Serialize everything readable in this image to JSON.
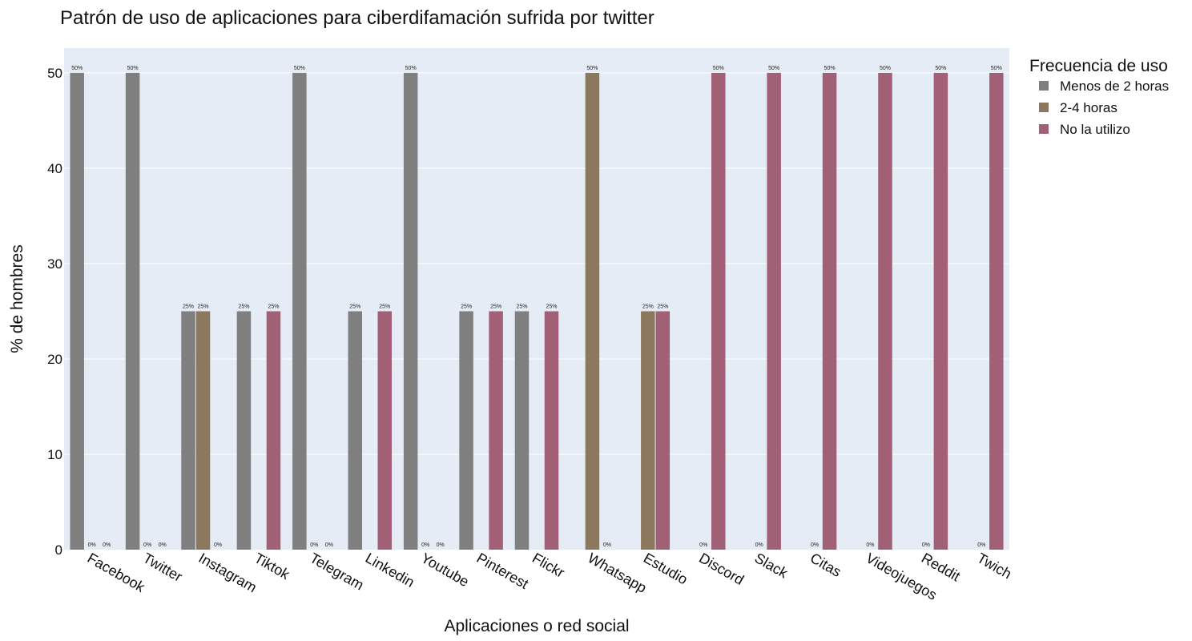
{
  "chart_data": {
    "type": "bar",
    "title": "Patrón de uso de aplicaciones para ciberdifamación sufrida por twitter",
    "xlabel": "Aplicaciones o red social",
    "ylabel": "% de hombres",
    "ylim": [
      0,
      52.6
    ],
    "yticks": [
      0,
      10,
      20,
      30,
      40,
      50
    ],
    "grid": true,
    "legend_title": "Frecuencia de uso",
    "legend_position": "top-right",
    "categories": [
      "Facebook",
      "Twitter",
      "Instagram",
      "Tiktok",
      "Telegram",
      "Linkedin",
      "Youtube",
      "Pinterest",
      "Flickr",
      "Whatsapp",
      "Estudio",
      "Discord",
      "Slack",
      "Citas",
      "Videojuegos",
      "Reddit",
      "Twich"
    ],
    "series": [
      {
        "name": "Menos de 2 horas",
        "color": "#7f7f7f",
        "values": [
          50,
          50,
          25,
          25,
          50,
          25,
          50,
          25,
          25,
          null,
          null,
          null,
          null,
          null,
          null,
          null,
          null
        ],
        "labels": [
          "50%",
          "50%",
          "25%",
          "25%",
          "50%",
          "25%",
          "50%",
          "25%",
          "25%",
          "",
          "",
          "",
          "",
          "",
          "",
          "",
          ""
        ]
      },
      {
        "name": "2-4 horas",
        "color": "#8c785d",
        "values": [
          0,
          0,
          25,
          null,
          0,
          null,
          0,
          null,
          null,
          50,
          25,
          0,
          0,
          0,
          0,
          0,
          0
        ],
        "labels": [
          "0%",
          "0%",
          "25%",
          "",
          "0%",
          "",
          "0%",
          "",
          "",
          "50%",
          "25%",
          "0%",
          "0%",
          "0%",
          "0%",
          "0%",
          "0%"
        ]
      },
      {
        "name": "No la utilizo",
        "color": "#a16075",
        "values": [
          0,
          0,
          0,
          25,
          0,
          25,
          0,
          25,
          25,
          0,
          25,
          50,
          50,
          50,
          50,
          50,
          50
        ],
        "labels": [
          "0%",
          "0%",
          "0%",
          "25%",
          "0%",
          "25%",
          "0%",
          "25%",
          "25%",
          "0%",
          "25%",
          "50%",
          "50%",
          "50%",
          "50%",
          "50%",
          "50%"
        ]
      }
    ],
    "plot_background": "#e5ecf6",
    "gridline_color": "#ffffff"
  }
}
